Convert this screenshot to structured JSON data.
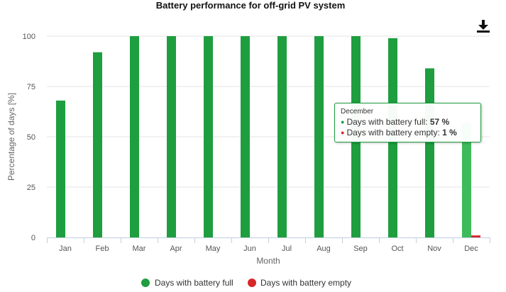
{
  "chart_data": {
    "type": "bar",
    "title": "Battery performance for off-grid PV system",
    "xlabel": "Month",
    "ylabel": "Percentage of days [%]",
    "ylim": [
      0,
      100
    ],
    "yticks": [
      0,
      25,
      50,
      75,
      100
    ],
    "grid": true,
    "legend_position": "bottom",
    "categories": [
      "Jan",
      "Feb",
      "Mar",
      "Apr",
      "May",
      "Jun",
      "Jul",
      "Aug",
      "Sep",
      "Oct",
      "Nov",
      "Dec"
    ],
    "series": [
      {
        "name": "Days with battery full",
        "color": "#1e9e3f",
        "values": [
          68,
          92,
          100,
          100,
          100,
          100,
          100,
          100,
          100,
          99,
          84,
          57
        ]
      },
      {
        "name": "Days with battery empty",
        "color": "#d62728",
        "values": [
          0,
          0,
          0,
          0,
          0,
          0,
          0,
          0,
          0,
          0,
          0,
          1
        ]
      }
    ],
    "highlighted_color": "#3dbb5c"
  },
  "tooltip": {
    "header": "December",
    "rows": [
      {
        "label": "Days with battery full: ",
        "value": "57 %",
        "color": "#1e9e3f"
      },
      {
        "label": "Days with battery empty: ",
        "value": "1 %",
        "color": "#d62728"
      }
    ]
  },
  "toolbar": {
    "download_icon": "download-icon"
  }
}
